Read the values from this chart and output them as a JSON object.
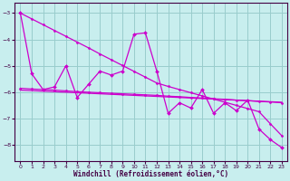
{
  "bg_color": "#c8eeee",
  "grid_color": "#99cccc",
  "line_color": "#cc00cc",
  "spine_color": "#440044",
  "xlim": [
    -0.5,
    23.5
  ],
  "ylim": [
    -8.6,
    -2.6
  ],
  "yticks": [
    -8,
    -7,
    -6,
    -5,
    -4,
    -3
  ],
  "xticks": [
    0,
    1,
    2,
    3,
    4,
    5,
    6,
    7,
    8,
    9,
    10,
    11,
    12,
    13,
    14,
    15,
    16,
    17,
    18,
    19,
    20,
    21,
    22,
    23
  ],
  "xlabel": "Windchill (Refroidissement éolien,°C)",
  "x": [
    0,
    1,
    2,
    3,
    4,
    5,
    6,
    7,
    8,
    9,
    10,
    11,
    12,
    13,
    14,
    15,
    16,
    17,
    18,
    19,
    20,
    21,
    22,
    23
  ],
  "y_zigzag": [
    -3.0,
    -5.3,
    -5.9,
    -5.8,
    -5.0,
    -6.2,
    -5.7,
    -5.2,
    -5.35,
    -5.2,
    -3.8,
    -3.75,
    -5.2,
    -6.8,
    -6.4,
    -6.6,
    -5.9,
    -6.8,
    -6.4,
    -6.7,
    -6.3,
    -7.4,
    -7.8,
    -8.1
  ],
  "y_linear": [
    -3.0,
    -3.22,
    -3.44,
    -3.66,
    -3.88,
    -4.1,
    -4.32,
    -4.55,
    -4.77,
    -4.99,
    -5.21,
    -5.43,
    -5.65,
    -5.78,
    -5.9,
    -6.02,
    -6.14,
    -6.26,
    -6.38,
    -6.5,
    -6.62,
    -6.74,
    -7.2,
    -7.65
  ],
  "y_flat1": [
    -5.85,
    -5.88,
    -5.9,
    -5.92,
    -5.95,
    -5.98,
    -6.0,
    -6.02,
    -6.04,
    -6.06,
    -6.08,
    -6.1,
    -6.12,
    -6.15,
    -6.17,
    -6.2,
    -6.22,
    -6.25,
    -6.27,
    -6.3,
    -6.32,
    -6.35,
    -6.37,
    -6.4
  ],
  "y_flat2": [
    -5.92,
    -5.94,
    -5.96,
    -5.98,
    -6.0,
    -6.02,
    -6.04,
    -6.06,
    -6.08,
    -6.1,
    -6.12,
    -6.14,
    -6.16,
    -6.18,
    -6.2,
    -6.22,
    -6.24,
    -6.26,
    -6.28,
    -6.3,
    -6.32,
    -6.34,
    -6.36,
    -6.38
  ]
}
